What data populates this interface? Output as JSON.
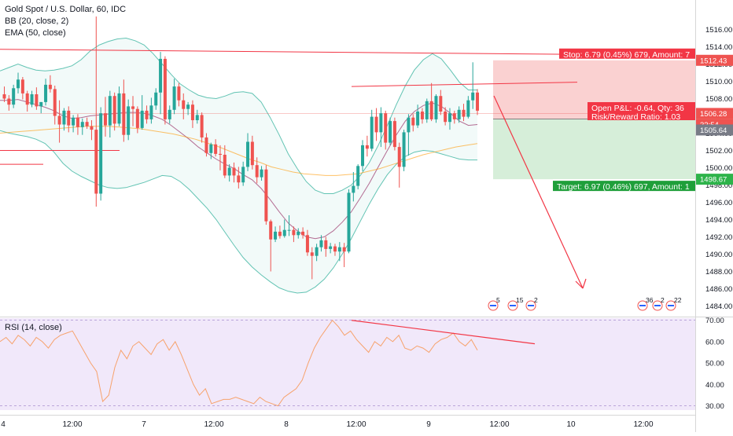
{
  "header": {
    "symbol": "Gold Spot / U.S. Dollar, 60, IDC",
    "indicator_bb": "BB (20, close, 2)",
    "indicator_ema": "EMA (50, close)",
    "indicator_rsi": "RSI (14, close)"
  },
  "position": {
    "stop_label": "Stop: 6.79 (0.45%) 679, Amount: 7",
    "pnl_label": "Open P&L: -0.64, Qty: 36",
    "rr_label": "Risk/Reward Ratio: 1.03",
    "target_label": "Target: 6.97 (0.46%) 697, Amount: 1",
    "stop_price": 1512.43,
    "entry_price": 1505.64,
    "target_price": 1498.67,
    "timer_label": "32:54"
  },
  "price_tags": {
    "stop": "1512.43",
    "current": "1506.28",
    "timer": "32:54",
    "entry": "1505.64",
    "target": "1498.67"
  },
  "events": {
    "first": [
      "5",
      "15",
      "2"
    ],
    "second": [
      "36",
      "2",
      "22"
    ]
  },
  "colors": {
    "up": "#26a69a",
    "down": "#ef5350",
    "bb_band": "#22ab94",
    "bb_basis": "#880e4f",
    "ema": "#ff9800",
    "rsi_line": "#f7a26c",
    "rsi_bg": "#f1e8fa",
    "stop_zone": "#f9c9c9",
    "target_zone": "#d1ecd5",
    "trend_line": "#f23645",
    "projection_arrow": "#f23645"
  },
  "chart_data": [
    {
      "type": "candlestick",
      "title": "Gold Spot / U.S. Dollar, 60, IDC",
      "xlabel": "",
      "ylabel": "",
      "ylim": [
        1483,
        1517
      ],
      "y_ticks": [
        1484.0,
        1486.0,
        1488.0,
        1490.0,
        1492.0,
        1494.0,
        1496.0,
        1498.0,
        1500.0,
        1502.0,
        1504.0,
        1506.0,
        1508.0,
        1510.0,
        1512.0,
        1514.0,
        1516.0
      ],
      "x_ticks": [
        "4",
        "12:00",
        "7",
        "12:00",
        "8",
        "12:00",
        "9",
        "12:00",
        "10",
        "12:00"
      ],
      "ohlc": [
        [
          1508.5,
          1509.4,
          1507.6,
          1508.0
        ],
        [
          1508.0,
          1508.4,
          1506.6,
          1507.3
        ],
        [
          1507.3,
          1509.6,
          1506.9,
          1509.2
        ],
        [
          1509.2,
          1511.0,
          1508.6,
          1510.2
        ],
        [
          1510.2,
          1510.5,
          1507.9,
          1508.6
        ],
        [
          1508.6,
          1508.9,
          1506.5,
          1507.3
        ],
        [
          1507.3,
          1508.9,
          1507.0,
          1508.5
        ],
        [
          1508.5,
          1509.3,
          1506.7,
          1507.1
        ],
        [
          1507.1,
          1507.6,
          1506.3,
          1507.6
        ],
        [
          1507.6,
          1510.3,
          1507.2,
          1509.6
        ],
        [
          1509.6,
          1510.7,
          1508.7,
          1509.1
        ],
        [
          1509.1,
          1509.5,
          1505.0,
          1506.0
        ],
        [
          1506.0,
          1507.8,
          1502.9,
          1505.0
        ],
        [
          1505.0,
          1506.9,
          1504.3,
          1506.6
        ],
        [
          1506.6,
          1507.1,
          1504.1,
          1504.9
        ],
        [
          1504.9,
          1506.1,
          1504.1,
          1505.8
        ],
        [
          1505.8,
          1506.2,
          1503.8,
          1504.7
        ],
        [
          1504.7,
          1505.7,
          1503.8,
          1505.3
        ],
        [
          1505.3,
          1505.8,
          1504.5,
          1504.8
        ],
        [
          1504.8,
          1505.5,
          1503.2,
          1504.4
        ],
        [
          1504.4,
          1517.5,
          1495.5,
          1497.0
        ],
        [
          1497.0,
          1507.0,
          1496.2,
          1506.3
        ],
        [
          1506.3,
          1508.2,
          1503.6,
          1504.9
        ],
        [
          1504.9,
          1508.9,
          1503.5,
          1508.3
        ],
        [
          1508.3,
          1508.7,
          1504.3,
          1505.1
        ],
        [
          1505.1,
          1509.4,
          1504.8,
          1508.6
        ],
        [
          1508.6,
          1510.2,
          1503.0,
          1503.8
        ],
        [
          1503.8,
          1507.9,
          1503.2,
          1507.1
        ],
        [
          1507.1,
          1508.3,
          1504.8,
          1506.8
        ],
        [
          1506.8,
          1507.1,
          1504.0,
          1504.6
        ],
        [
          1504.6,
          1508.4,
          1504.4,
          1506.6
        ],
        [
          1506.6,
          1507.2,
          1505.1,
          1505.6
        ],
        [
          1505.6,
          1508.1,
          1505.1,
          1507.2
        ],
        [
          1507.2,
          1509.2,
          1506.7,
          1508.7
        ],
        [
          1508.7,
          1513.4,
          1506.2,
          1512.6
        ],
        [
          1512.6,
          1512.9,
          1505.0,
          1505.6
        ],
        [
          1505.6,
          1507.2,
          1505.1,
          1506.7
        ],
        [
          1506.7,
          1510.3,
          1506.2,
          1509.4
        ],
        [
          1509.4,
          1509.8,
          1507.1,
          1507.8
        ],
        [
          1507.8,
          1508.6,
          1505.6,
          1506.8
        ],
        [
          1506.8,
          1507.6,
          1506.1,
          1507.3
        ],
        [
          1507.3,
          1507.8,
          1504.6,
          1505.5
        ],
        [
          1505.5,
          1506.7,
          1505.1,
          1506.1
        ],
        [
          1506.1,
          1506.4,
          1502.9,
          1503.5
        ],
        [
          1503.5,
          1504.0,
          1501.3,
          1501.7
        ],
        [
          1501.7,
          1502.9,
          1501.0,
          1502.7
        ],
        [
          1502.7,
          1503.3,
          1501.3,
          1501.6
        ],
        [
          1501.6,
          1502.6,
          1499.7,
          1501.5
        ],
        [
          1501.5,
          1502.6,
          1498.8,
          1499.1
        ],
        [
          1499.1,
          1500.4,
          1498.4,
          1500.0
        ],
        [
          1500.0,
          1500.6,
          1498.3,
          1499.1
        ],
        [
          1499.1,
          1500.1,
          1497.6,
          1498.3
        ],
        [
          1498.3,
          1500.7,
          1497.9,
          1500.1
        ],
        [
          1500.1,
          1504.0,
          1499.6,
          1503.0
        ],
        [
          1503.0,
          1503.7,
          1499.8,
          1500.3
        ],
        [
          1500.3,
          1501.2,
          1498.2,
          1498.9
        ],
        [
          1498.9,
          1500.2,
          1498.5,
          1499.8
        ],
        [
          1499.8,
          1500.3,
          1493.4,
          1493.8
        ],
        [
          1493.8,
          1494.0,
          1488.0,
          1491.7
        ],
        [
          1491.7,
          1493.2,
          1491.4,
          1492.6
        ],
        [
          1492.6,
          1493.3,
          1491.8,
          1492.1
        ],
        [
          1492.1,
          1494.0,
          1491.9,
          1492.8
        ],
        [
          1492.8,
          1494.5,
          1492.1,
          1492.8
        ],
        [
          1492.8,
          1493.2,
          1491.4,
          1492.2
        ],
        [
          1492.2,
          1493.0,
          1491.8,
          1492.6
        ],
        [
          1492.6,
          1493.1,
          1491.8,
          1492.2
        ],
        [
          1492.2,
          1492.8,
          1489.8,
          1490.2
        ],
        [
          1490.2,
          1490.8,
          1487.1,
          1489.8
        ],
        [
          1489.8,
          1491.2,
          1489.2,
          1490.8
        ],
        [
          1490.8,
          1492.2,
          1490.3,
          1491.6
        ],
        [
          1491.6,
          1492.0,
          1489.7,
          1490.6
        ],
        [
          1490.6,
          1491.3,
          1490.1,
          1490.9
        ],
        [
          1490.9,
          1491.2,
          1489.8,
          1490.3
        ],
        [
          1490.3,
          1491.4,
          1489.2,
          1490.8
        ],
        [
          1490.8,
          1491.3,
          1488.5,
          1490.3
        ],
        [
          1490.3,
          1497.5,
          1490.1,
          1497.1
        ],
        [
          1497.1,
          1499.5,
          1496.1,
          1497.9
        ],
        [
          1497.9,
          1500.4,
          1497.5,
          1500.2
        ],
        [
          1500.2,
          1503.2,
          1499.6,
          1502.6
        ],
        [
          1502.6,
          1503.7,
          1501.3,
          1502.2
        ],
        [
          1502.2,
          1506.7,
          1501.9,
          1505.9
        ],
        [
          1505.9,
          1506.9,
          1503.1,
          1504.1
        ],
        [
          1504.1,
          1507.0,
          1502.4,
          1506.3
        ],
        [
          1506.3,
          1506.6,
          1502.1,
          1502.9
        ],
        [
          1502.9,
          1505.8,
          1502.6,
          1505.4
        ],
        [
          1505.4,
          1505.8,
          1502.0,
          1502.4
        ],
        [
          1502.4,
          1502.9,
          1497.7,
          1500.1
        ],
        [
          1500.1,
          1504.4,
          1499.6,
          1504.1
        ],
        [
          1504.1,
          1506.2,
          1501.4,
          1505.8
        ],
        [
          1505.8,
          1506.2,
          1504.2,
          1504.9
        ],
        [
          1504.9,
          1507.3,
          1504.6,
          1506.5
        ],
        [
          1506.5,
          1506.9,
          1505.1,
          1505.6
        ],
        [
          1505.6,
          1508.0,
          1505.2,
          1507.7
        ],
        [
          1507.7,
          1509.8,
          1505.4,
          1505.6
        ],
        [
          1505.6,
          1508.5,
          1505.2,
          1508.3
        ],
        [
          1508.3,
          1509.0,
          1506.1,
          1506.5
        ],
        [
          1506.5,
          1507.0,
          1504.9,
          1505.3
        ],
        [
          1505.3,
          1506.9,
          1504.4,
          1506.3
        ],
        [
          1506.3,
          1506.6,
          1505.1,
          1505.6
        ],
        [
          1505.6,
          1507.1,
          1505.2,
          1506.7
        ],
        [
          1506.7,
          1507.4,
          1505.4,
          1505.9
        ],
        [
          1505.9,
          1508.3,
          1505.7,
          1507.8
        ],
        [
          1507.8,
          1512.2,
          1506.8,
          1508.7
        ],
        [
          1508.7,
          1509.1,
          1506.1,
          1506.6
        ]
      ],
      "series": [
        {
          "name": "BB",
          "upper": [
            1511.2,
            1511.6,
            1512.0,
            1511.6,
            1511.3,
            1511.2,
            1511.3,
            1511.5,
            1511.8,
            1512.5,
            1513.5,
            1514.2,
            1514.6,
            1514.9,
            1515.0,
            1514.7,
            1514.2,
            1513.2,
            1512.0,
            1510.8,
            1509.7,
            1509.0,
            1508.4,
            1508.1,
            1508.0,
            1508.3,
            1508.7,
            1508.8,
            1508.6,
            1507.6,
            1505.8,
            1503.8,
            1501.6,
            1499.9,
            1498.4,
            1497.4,
            1497.0,
            1497.0,
            1497.4,
            1498.0,
            1499.1,
            1500.6,
            1502.6,
            1504.9,
            1507.3,
            1509.5,
            1511.3,
            1512.5,
            1513.2,
            1512.6,
            1511.3,
            1509.9,
            1509.0,
            1509.0
          ],
          "lower": [
            1504.3,
            1504.0,
            1503.8,
            1503.6,
            1503.3,
            1502.8,
            1501.8,
            1500.5,
            1499.6,
            1499.0,
            1498.5,
            1498.0,
            1497.7,
            1497.6,
            1497.7,
            1498.0,
            1498.3,
            1498.7,
            1499.1,
            1499.0,
            1498.4,
            1497.5,
            1496.4,
            1495.3,
            1494.0,
            1492.5,
            1491.0,
            1489.6,
            1488.5,
            1487.6,
            1486.8,
            1486.1,
            1485.7,
            1485.5,
            1485.6,
            1486.2,
            1487.1,
            1488.4,
            1490.0,
            1491.8,
            1493.8,
            1495.8,
            1497.6,
            1499.2,
            1500.4,
            1501.3,
            1501.8,
            1502.0,
            1501.9,
            1501.6,
            1501.3,
            1501.0,
            1500.9,
            1500.9
          ]
        },
        {
          "name": "BB basis",
          "values": [
            1507.8,
            1507.8,
            1507.9,
            1507.6,
            1507.3,
            1507.0,
            1506.6,
            1506.0,
            1505.7,
            1505.8,
            1506.0,
            1506.1,
            1506.2,
            1506.3,
            1506.4,
            1506.4,
            1506.3,
            1506.0,
            1505.6,
            1504.9,
            1504.1,
            1503.3,
            1502.4,
            1501.7,
            1501.0,
            1500.4,
            1499.9,
            1499.2,
            1498.6,
            1497.6,
            1496.3,
            1494.9,
            1493.6,
            1492.7,
            1492.0,
            1491.8,
            1492.0,
            1492.7,
            1493.7,
            1494.9,
            1496.5,
            1498.2,
            1500.1,
            1502.0,
            1503.8,
            1505.4,
            1506.5,
            1507.2,
            1507.5,
            1507.1,
            1506.3,
            1505.4,
            1504.9,
            1505.0
          ]
        },
        {
          "name": "EMA",
          "values": [
            1504.0,
            1504.1,
            1504.2,
            1504.3,
            1504.4,
            1504.5,
            1504.6,
            1504.7,
            1504.8,
            1504.8,
            1504.8,
            1504.7,
            1504.6,
            1504.5,
            1504.3,
            1504.1,
            1503.9,
            1503.6,
            1503.3,
            1502.9,
            1502.5,
            1502.0,
            1501.5,
            1501.0,
            1500.6,
            1500.1,
            1499.8,
            1499.5,
            1499.3,
            1499.2,
            1499.1,
            1499.1,
            1499.2,
            1499.3,
            1499.6,
            1499.9,
            1500.3,
            1500.7,
            1501.1,
            1501.5,
            1501.8,
            1502.1,
            1502.4,
            1502.6,
            1502.8
          ]
        }
      ]
    },
    {
      "type": "line",
      "title": "RSI (14, close)",
      "xlabel": "",
      "ylabel": "",
      "ylim": [
        28,
        71
      ],
      "y_ticks": [
        30.0,
        40.0,
        50.0,
        60.0,
        70.0
      ],
      "series": [
        {
          "name": "RSI",
          "values": [
            60,
            62,
            59,
            63,
            61,
            58,
            62,
            60,
            57,
            61,
            63,
            64,
            65,
            60,
            55,
            50,
            46,
            32,
            35,
            48,
            56,
            52,
            58,
            60,
            57,
            54,
            59,
            61,
            56,
            60,
            54,
            47,
            40,
            35,
            38,
            31,
            32,
            33,
            33,
            34,
            33,
            32,
            31,
            34,
            32,
            31,
            30,
            34,
            36,
            38,
            42,
            50,
            57,
            62,
            66,
            70,
            67,
            63,
            65,
            61,
            58,
            55,
            60,
            58,
            62,
            60,
            63,
            57,
            56,
            58,
            57,
            55,
            59,
            61,
            62,
            64,
            60,
            58,
            61,
            56
          ]
        }
      ]
    }
  ]
}
